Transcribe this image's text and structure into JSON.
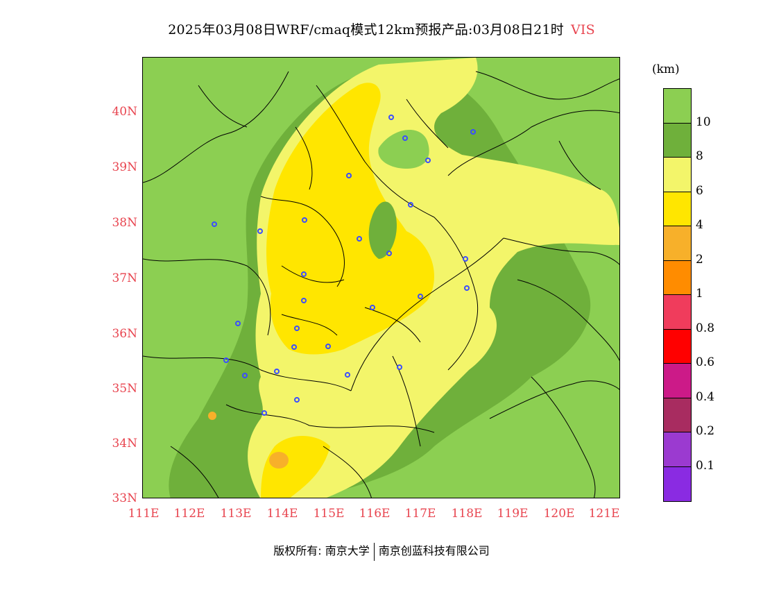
{
  "title": {
    "main": "2025年03月08日WRF/cmaq模式12km预报产品:03月08日21时",
    "variable": "VIS"
  },
  "map": {
    "lat_labels": [
      "40N",
      "39N",
      "38N",
      "37N",
      "36N",
      "35N",
      "34N",
      "33N"
    ],
    "lon_labels": [
      "111E",
      "112E",
      "113E",
      "114E",
      "115E",
      "116E",
      "117E",
      "118E",
      "119E",
      "120E",
      "121E"
    ],
    "colors": {
      "gt10": "#8ccf52",
      "8_10": "#6fb03b",
      "6_8": "#f3f56a",
      "4_6": "#ffe600",
      "2_4": "#f7b02a",
      "station": "#3a4dff",
      "boundary": "#000000"
    }
  },
  "legend": {
    "unit": "(km)",
    "labels": [
      "10",
      "8",
      "6",
      "4",
      "2",
      "1",
      "0.8",
      "0.6",
      "0.4",
      "0.2",
      "0.1"
    ],
    "colors": [
      "#8ccf52",
      "#6fb03b",
      "#f3f56a",
      "#ffe600",
      "#f7b02a",
      "#ff8c00",
      "#f03c5c",
      "#ff0000",
      "#cc1a88",
      "#a82c60",
      "#9b3ad0",
      "#8a2be2"
    ]
  },
  "footer": {
    "copyright": "版权所有: 南京大学",
    "company": "南京创蓝科技有限公司"
  }
}
